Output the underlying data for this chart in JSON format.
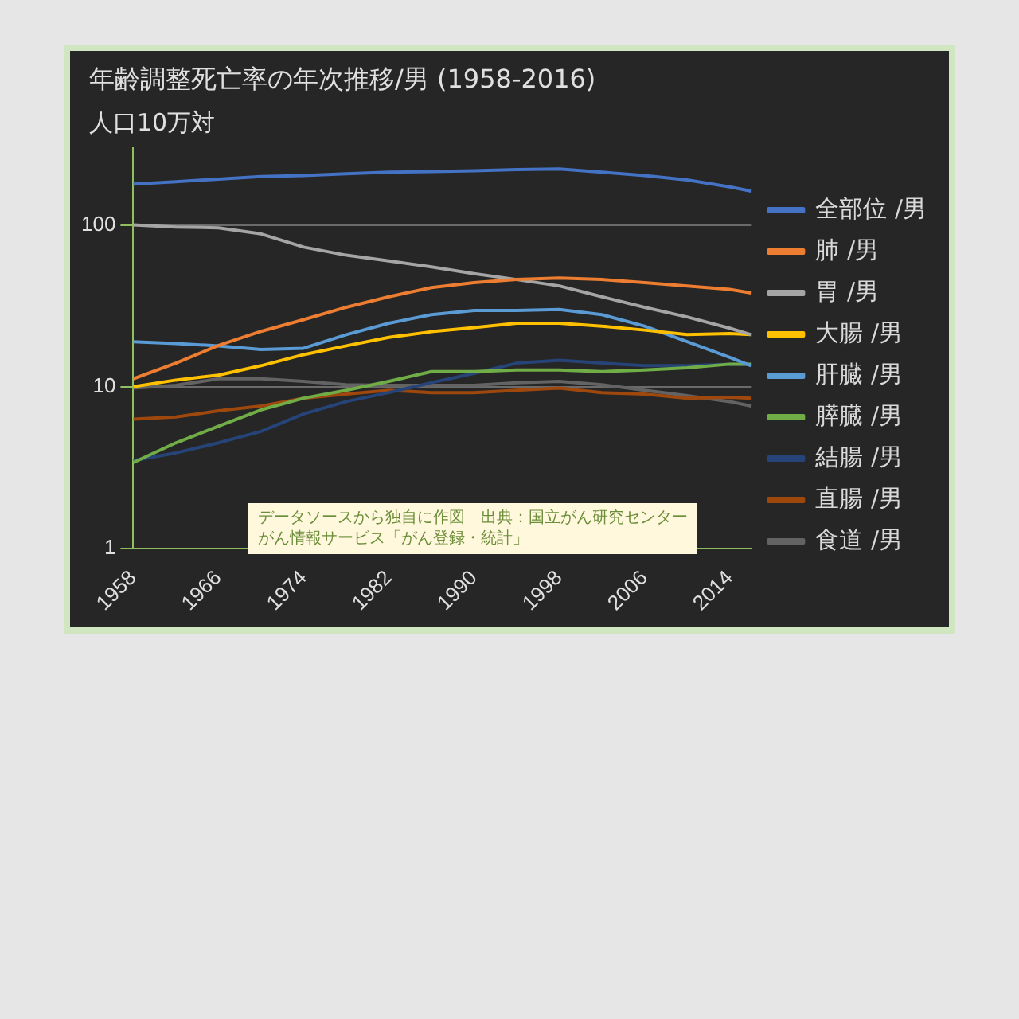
{
  "chart_data": {
    "type": "line",
    "title": "年齢調整死亡率の年次推移/男 (1958-2016)",
    "ylabel": "人口10万対",
    "x": [
      1958,
      1962,
      1966,
      1970,
      1974,
      1978,
      1982,
      1986,
      1990,
      1994,
      1998,
      2002,
      2006,
      2010,
      2014,
      2016
    ],
    "series": [
      {
        "name": "全部位 /男",
        "color": "#4472c4",
        "values": [
          179,
          185,
          192,
          199,
          202,
          207,
          212,
          214,
          216,
          220,
          222,
          212,
          202,
          190,
          172,
          162
        ]
      },
      {
        "name": "肺 /男",
        "color": "#ed7d31",
        "values": [
          11.2,
          14,
          18,
          22,
          26,
          31,
          36,
          41,
          44,
          46,
          47,
          46,
          44,
          42,
          40,
          38
        ]
      },
      {
        "name": "胃 /男",
        "color": "#a5a5a5",
        "values": [
          100,
          97,
          96,
          88,
          73,
          65,
          60,
          55,
          50,
          46,
          42,
          36,
          31,
          27,
          23,
          21
        ]
      },
      {
        "name": "大腸 /男",
        "color": "#ffc000",
        "values": [
          10,
          11,
          11.8,
          13.5,
          15.8,
          17.9,
          20.2,
          21.9,
          23.2,
          24.7,
          24.7,
          23.7,
          22.4,
          21,
          21.3,
          21
        ]
      },
      {
        "name": "肝臓 /男",
        "color": "#5b9bd5",
        "values": [
          19,
          18.5,
          17.9,
          17,
          17.3,
          21,
          24.7,
          27.9,
          29.6,
          29.6,
          30,
          27.9,
          23.7,
          19,
          15.2,
          13.5
        ]
      },
      {
        "name": "膵臓 /男",
        "color": "#70ad47",
        "values": [
          3.4,
          4.5,
          5.7,
          7.2,
          8.5,
          9.5,
          10.8,
          12.4,
          12.4,
          12.7,
          12.7,
          12.4,
          12.7,
          13.1,
          13.8,
          13.8
        ]
      },
      {
        "name": "結腸 /男",
        "color": "#264478",
        "values": [
          3.5,
          3.9,
          4.5,
          5.3,
          6.8,
          8.1,
          9.2,
          10.6,
          12.1,
          14,
          14.6,
          14,
          13.5,
          13.5,
          13.8,
          13.8
        ]
      },
      {
        "name": "直腸 /男",
        "color": "#9e480e",
        "values": [
          6.3,
          6.5,
          7.1,
          7.6,
          8.5,
          9,
          9.5,
          9.2,
          9.2,
          9.5,
          9.8,
          9.2,
          9,
          8.5,
          8.6,
          8.5
        ]
      },
      {
        "name": "食道 /男",
        "color": "#636363",
        "values": [
          9.8,
          10.2,
          11.2,
          11.2,
          10.8,
          10.3,
          10.2,
          10.2,
          10.2,
          10.6,
          10.8,
          10.3,
          9.5,
          8.8,
          8.1,
          7.6
        ]
      }
    ],
    "xlim": [
      1958,
      2016
    ],
    "xticks": [
      1958,
      1966,
      1974,
      1982,
      1990,
      1998,
      2006,
      2014
    ],
    "ylim": [
      1,
      300
    ],
    "yticks": [
      1,
      10,
      100
    ],
    "log": true,
    "grid": "y",
    "legend": "right",
    "marker": "none",
    "line_style": "solid",
    "annotations": [
      "データソースから独自に作図　出典：国立がん研究センターがん情報サービス「がん登録・統計」"
    ]
  }
}
